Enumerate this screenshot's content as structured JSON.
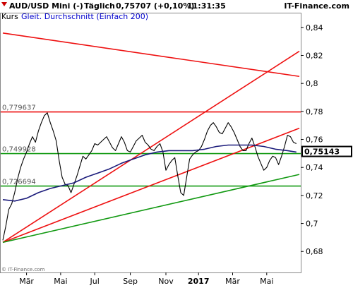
{
  "header": {
    "instrument": "AUD/USD Mini (-)",
    "period": "Täglich",
    "quote": "0,75707 (+0,10%)",
    "time": "11:31:35",
    "brand": "IT-Finance.com",
    "legend_prefix": "Kurs",
    "legend_series": "Gleit. Durchschnitt (Einfach 200)"
  },
  "copyright": "© IT-Finance.com",
  "colors": {
    "price": "#000000",
    "moving_average": "#1a1a7a",
    "resistance": "#ee1111",
    "support": "#119911",
    "last_value_box": "#000000"
  },
  "chart_data": {
    "type": "line",
    "title": "AUD/USD Mini (-)",
    "ylim": [
      0.665,
      0.85
    ],
    "xlim": [
      0,
      100
    ],
    "y_ticks": [
      {
        "value": 0.68,
        "label": "0,68"
      },
      {
        "value": 0.7,
        "label": "0,7"
      },
      {
        "value": 0.72,
        "label": "0,72"
      },
      {
        "value": 0.74,
        "label": "0,74"
      },
      {
        "value": 0.76,
        "label": "0,76"
      },
      {
        "value": 0.78,
        "label": "0,78"
      },
      {
        "value": 0.8,
        "label": "0,8"
      },
      {
        "value": 0.82,
        "label": "0,82"
      },
      {
        "value": 0.84,
        "label": "0,84"
      }
    ],
    "x_ticks": [
      {
        "t": 8,
        "label": "Mär",
        "bold": false
      },
      {
        "t": 19.5,
        "label": "Mai",
        "bold": false
      },
      {
        "t": 31,
        "label": "Jul",
        "bold": false
      },
      {
        "t": 43,
        "label": "Sep",
        "bold": false
      },
      {
        "t": 55,
        "label": "Nov",
        "bold": false
      },
      {
        "t": 66,
        "label": "2017",
        "bold": true
      },
      {
        "t": 77.5,
        "label": "Mär",
        "bold": false
      },
      {
        "t": 89,
        "label": "Mai",
        "bold": false
      }
    ],
    "grid": false,
    "last_value": {
      "value": 0.75143,
      "label": "0,75143"
    },
    "horizontal_levels": [
      {
        "value": 0.779637,
        "label": "0,779637",
        "color": "#ee1111"
      },
      {
        "value": 0.749928,
        "label": "0,749928",
        "color": "#119911"
      },
      {
        "value": 0.726694,
        "label": "0,726694",
        "color": "#119911"
      }
    ],
    "trend_lines": [
      {
        "color": "#ee1111",
        "points": [
          [
            0,
            0.836
          ],
          [
            100,
            0.805
          ]
        ]
      },
      {
        "color": "#ee1111",
        "points": [
          [
            0,
            0.6865
          ],
          [
            100,
            0.823
          ]
        ]
      },
      {
        "color": "#ee1111",
        "points": [
          [
            0,
            0.6865
          ],
          [
            100,
            0.768
          ]
        ]
      },
      {
        "color": "#119911",
        "points": [
          [
            0,
            0.6865
          ],
          [
            100,
            0.735
          ]
        ]
      }
    ],
    "series": [
      {
        "name": "Kurs",
        "x": [
          0,
          1,
          2,
          3,
          4,
          5,
          6,
          7,
          8,
          9,
          10,
          11,
          12,
          13,
          14,
          15,
          16,
          17,
          18,
          19,
          20,
          21,
          22,
          23,
          24,
          25,
          26,
          27,
          28,
          29,
          30,
          31,
          32,
          33,
          34,
          35,
          36,
          37,
          38,
          39,
          40,
          41,
          42,
          43,
          44,
          45,
          46,
          47,
          48,
          49,
          50,
          51,
          52,
          53,
          54,
          55,
          56,
          57,
          58,
          59,
          60,
          61,
          62,
          63,
          64,
          65,
          66,
          67,
          68,
          69,
          70,
          71,
          72,
          73,
          74,
          75,
          76,
          77,
          78,
          79,
          80,
          81,
          82,
          83,
          84,
          85,
          86,
          87,
          88,
          89,
          90,
          91,
          92,
          93,
          94,
          95,
          96,
          97,
          98,
          99
        ],
        "y": [
          0.688,
          0.698,
          0.71,
          0.714,
          0.722,
          0.732,
          0.74,
          0.746,
          0.751,
          0.757,
          0.762,
          0.758,
          0.766,
          0.772,
          0.777,
          0.779,
          0.772,
          0.766,
          0.759,
          0.745,
          0.733,
          0.728,
          0.727,
          0.722,
          0.728,
          0.734,
          0.741,
          0.748,
          0.746,
          0.749,
          0.752,
          0.757,
          0.756,
          0.758,
          0.76,
          0.762,
          0.758,
          0.754,
          0.752,
          0.757,
          0.762,
          0.758,
          0.752,
          0.751,
          0.755,
          0.759,
          0.761,
          0.763,
          0.758,
          0.756,
          0.753,
          0.752,
          0.755,
          0.757,
          0.751,
          0.738,
          0.742,
          0.745,
          0.747,
          0.734,
          0.722,
          0.72,
          0.733,
          0.746,
          0.749,
          0.751,
          0.752,
          0.755,
          0.76,
          0.766,
          0.77,
          0.772,
          0.769,
          0.765,
          0.764,
          0.768,
          0.772,
          0.769,
          0.765,
          0.76,
          0.755,
          0.752,
          0.752,
          0.757,
          0.761,
          0.755,
          0.748,
          0.743,
          0.738,
          0.74,
          0.745,
          0.748,
          0.747,
          0.742,
          0.748,
          0.755,
          0.763,
          0.762,
          0.758,
          0.757
        ]
      },
      {
        "name": "Gleit. Durchschnitt (Einfach 200)",
        "x": [
          0,
          4,
          8,
          12,
          16,
          20,
          24,
          28,
          32,
          36,
          40,
          44,
          48,
          52,
          56,
          60,
          64,
          68,
          72,
          76,
          80,
          84,
          88,
          92,
          96,
          99
        ],
        "y": [
          0.717,
          0.716,
          0.718,
          0.722,
          0.725,
          0.727,
          0.729,
          0.733,
          0.736,
          0.739,
          0.743,
          0.746,
          0.749,
          0.751,
          0.752,
          0.752,
          0.752,
          0.753,
          0.755,
          0.756,
          0.756,
          0.756,
          0.755,
          0.753,
          0.752,
          0.751
        ]
      }
    ]
  }
}
